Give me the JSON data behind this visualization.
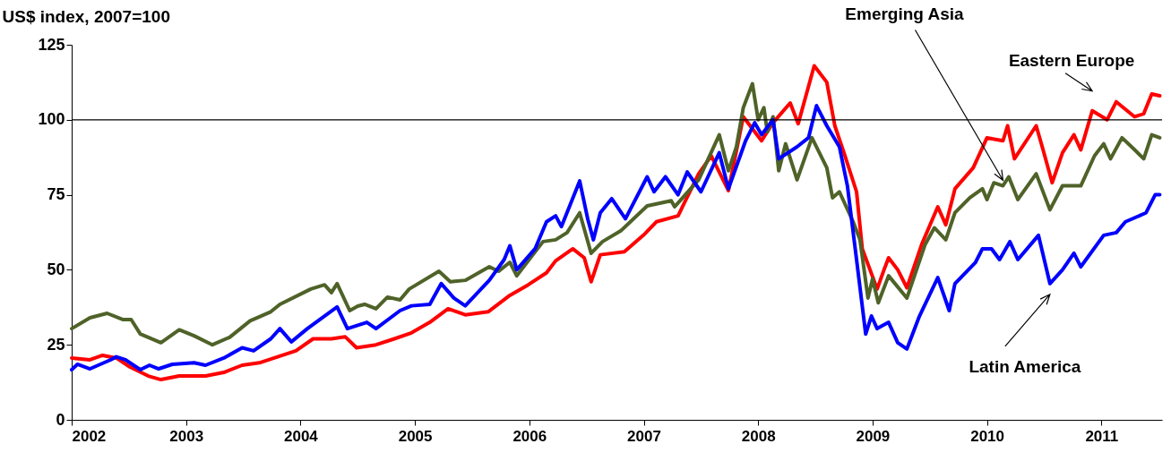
{
  "chart_data": {
    "type": "line",
    "ylabel": "US$ index, 2007=100",
    "xlim": [
      2002,
      2011.53
    ],
    "xticks": [
      2002,
      2003,
      2004,
      2005,
      2006,
      2007,
      2008,
      2009,
      2010,
      2011
    ],
    "ylim": [
      0,
      125
    ],
    "yticks": [
      0,
      25,
      50,
      75,
      100,
      125
    ],
    "grid": false,
    "legend": false,
    "ref_lines": [
      {
        "axis": "y",
        "value": 100,
        "color": "#000000"
      }
    ],
    "series": [
      {
        "name": "Eastern Europe",
        "color": "#ff0000",
        "x": [
          2002.0,
          2002.16,
          2002.27,
          2002.39,
          2002.51,
          2002.67,
          2002.78,
          2002.94,
          2003.17,
          2003.33,
          2003.49,
          2003.64,
          2003.8,
          2003.96,
          2004.11,
          2004.27,
          2004.39,
          2004.49,
          2004.66,
          2004.82,
          2004.97,
          2005.13,
          2005.29,
          2005.44,
          2005.64,
          2005.83,
          2005.99,
          2006.15,
          2006.23,
          2006.38,
          2006.48,
          2006.54,
          2006.62,
          2006.83,
          2007.01,
          2007.11,
          2007.3,
          2007.48,
          2007.59,
          2007.74,
          2007.87,
          2008.03,
          2008.13,
          2008.28,
          2008.35,
          2008.49,
          2008.6,
          2008.67,
          2008.75,
          2008.86,
          2008.91,
          2009.04,
          2009.1,
          2009.14,
          2009.22,
          2009.3,
          2009.43,
          2009.57,
          2009.64,
          2009.72,
          2009.88,
          2010.0,
          2010.14,
          2010.18,
          2010.24,
          2010.43,
          2010.49,
          2010.57,
          2010.66,
          2010.76,
          2010.82,
          2010.92,
          2011.05,
          2011.13,
          2011.29,
          2011.37,
          2011.44,
          2011.51
        ],
        "values": [
          20.6,
          20,
          21.5,
          20.6,
          17.6,
          14.6,
          13.4,
          14.6,
          14.6,
          15.8,
          18.2,
          19,
          21,
          23,
          27,
          27,
          27.7,
          24,
          25,
          27,
          29,
          32.5,
          37,
          35,
          36,
          41.5,
          45,
          49,
          53,
          57,
          54,
          46,
          55,
          56,
          62,
          66,
          68,
          82,
          88,
          76.4,
          101,
          93,
          99,
          105.6,
          98.7,
          118,
          112.5,
          98,
          89,
          76,
          57,
          43.6,
          50,
          54,
          50,
          44,
          58.5,
          71,
          65,
          77,
          84,
          94,
          93,
          98,
          87,
          98,
          90,
          79,
          89,
          95,
          90,
          103,
          100,
          106,
          101,
          102,
          108.6,
          108
        ]
      },
      {
        "name": "Emerging Asia",
        "color": "#4f6228",
        "x": [
          2002.0,
          2002.16,
          2002.31,
          2002.45,
          2002.52,
          2002.6,
          2002.78,
          2002.94,
          2003.07,
          2003.23,
          2003.38,
          2003.56,
          2003.74,
          2003.82,
          2004.09,
          2004.21,
          2004.27,
          2004.32,
          2004.43,
          2004.5,
          2004.56,
          2004.66,
          2004.76,
          2004.87,
          2004.95,
          2005.21,
          2005.31,
          2005.44,
          2005.65,
          2005.73,
          2005.83,
          2005.89,
          2006.01,
          2006.12,
          2006.23,
          2006.33,
          2006.44,
          2006.54,
          2006.64,
          2006.8,
          2007.03,
          2007.24,
          2007.27,
          2007.48,
          2007.66,
          2007.74,
          2007.81,
          2007.87,
          2007.95,
          2008.0,
          2008.05,
          2008.08,
          2008.13,
          2008.18,
          2008.24,
          2008.34,
          2008.47,
          2008.6,
          2008.65,
          2008.71,
          2008.83,
          2008.89,
          2008.96,
          2009.0,
          2009.05,
          2009.14,
          2009.3,
          2009.46,
          2009.54,
          2009.64,
          2009.72,
          2009.85,
          2009.96,
          2010.0,
          2010.06,
          2010.14,
          2010.19,
          2010.27,
          2010.43,
          2010.55,
          2010.66,
          2010.82,
          2010.94,
          2011.02,
          2011.08,
          2011.18,
          2011.29,
          2011.37,
          2011.44,
          2011.51
        ],
        "values": [
          30.4,
          34,
          35.5,
          33.4,
          33.4,
          28.6,
          25.7,
          30,
          28,
          25,
          27.5,
          33,
          36,
          38.5,
          43.6,
          45,
          42.4,
          45.4,
          36.4,
          37.9,
          38.5,
          37,
          40.9,
          40,
          43.6,
          49.5,
          46,
          46.5,
          51,
          49.5,
          52.5,
          48,
          54,
          59.4,
          60,
          62.4,
          69,
          55.5,
          59.4,
          63,
          71.3,
          73,
          71,
          80,
          95,
          83,
          91,
          104,
          112,
          100,
          104,
          96,
          101,
          83,
          92,
          80,
          94,
          84,
          74,
          76,
          66,
          60,
          40.6,
          47,
          39,
          48,
          40.6,
          58.5,
          64,
          60,
          69,
          74,
          77,
          73.4,
          79,
          78,
          81,
          73.4,
          82,
          70,
          78,
          78,
          88,
          92,
          87,
          94,
          90,
          87,
          95,
          94
        ]
      },
      {
        "name": "Latin America",
        "color": "#0000ff",
        "x": [
          2002.0,
          2002.05,
          2002.16,
          2002.34,
          2002.39,
          2002.47,
          2002.6,
          2002.68,
          2002.76,
          2002.88,
          2003.07,
          2003.17,
          2003.33,
          2003.49,
          2003.59,
          2003.74,
          2003.82,
          2003.92,
          2004.06,
          2004.21,
          2004.32,
          2004.41,
          2004.58,
          2004.66,
          2004.87,
          2004.97,
          2005.13,
          2005.23,
          2005.34,
          2005.44,
          2005.65,
          2005.78,
          2005.83,
          2005.89,
          2006.05,
          2006.15,
          2006.23,
          2006.28,
          2006.44,
          2006.51,
          2006.56,
          2006.62,
          2006.72,
          2006.84,
          2007.03,
          2007.09,
          2007.19,
          2007.3,
          2007.38,
          2007.5,
          2007.66,
          2007.74,
          2007.89,
          2007.97,
          2008.03,
          2008.13,
          2008.18,
          2008.34,
          2008.44,
          2008.51,
          2008.6,
          2008.71,
          2008.78,
          2008.86,
          2008.94,
          2008.99,
          2009.04,
          2009.14,
          2009.22,
          2009.3,
          2009.41,
          2009.57,
          2009.67,
          2009.72,
          2009.9,
          2009.96,
          2010.04,
          2010.11,
          2010.2,
          2010.27,
          2010.45,
          2010.55,
          2010.66,
          2010.76,
          2010.82,
          2011.02,
          2011.13,
          2011.21,
          2011.39,
          2011.47,
          2011.51
        ],
        "values": [
          16.7,
          18.5,
          17,
          20,
          21,
          20,
          16.7,
          18.2,
          17,
          18.5,
          19,
          18.2,
          20.6,
          24,
          23,
          27,
          30.4,
          26,
          30.4,
          34.6,
          37.6,
          30.4,
          32.5,
          30.4,
          36.4,
          38,
          38.5,
          45.4,
          40.6,
          38,
          46.5,
          53.4,
          58,
          50,
          57,
          66,
          68,
          64.4,
          79.6,
          67,
          60,
          69,
          73.7,
          67,
          81,
          76,
          81,
          75,
          82.6,
          76,
          89,
          77,
          93,
          99,
          95,
          100,
          87,
          91,
          94,
          104.7,
          98,
          91,
          78,
          53.4,
          28.6,
          34.6,
          30.4,
          32.5,
          25.7,
          23.6,
          34.6,
          47.4,
          36.4,
          45.4,
          52.5,
          57,
          57,
          53.4,
          59.4,
          53.4,
          61.5,
          45.4,
          50,
          55.5,
          51,
          61.5,
          62.4,
          66,
          69,
          75,
          75
        ]
      }
    ]
  }
}
